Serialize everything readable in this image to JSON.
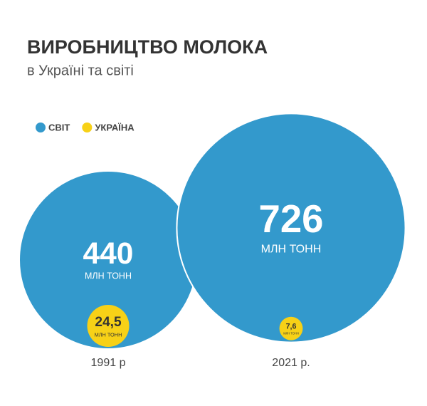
{
  "chart_data": {
    "type": "bubble",
    "title": "ВИРОБНИЦТВО МОЛОКА",
    "subtitle": "в Україні та світі",
    "unit": "МЛН ТОНН",
    "categories": [
      "1991 р",
      "2021 р."
    ],
    "series": [
      {
        "name": "СВІТ",
        "color": "#3399cc",
        "values": [
          440,
          726
        ]
      },
      {
        "name": "УКРАЇНА",
        "color": "#f7d117",
        "values": [
          24.5,
          7.6
        ],
        "value_labels": [
          "24,5",
          "7,6"
        ]
      }
    ]
  }
}
